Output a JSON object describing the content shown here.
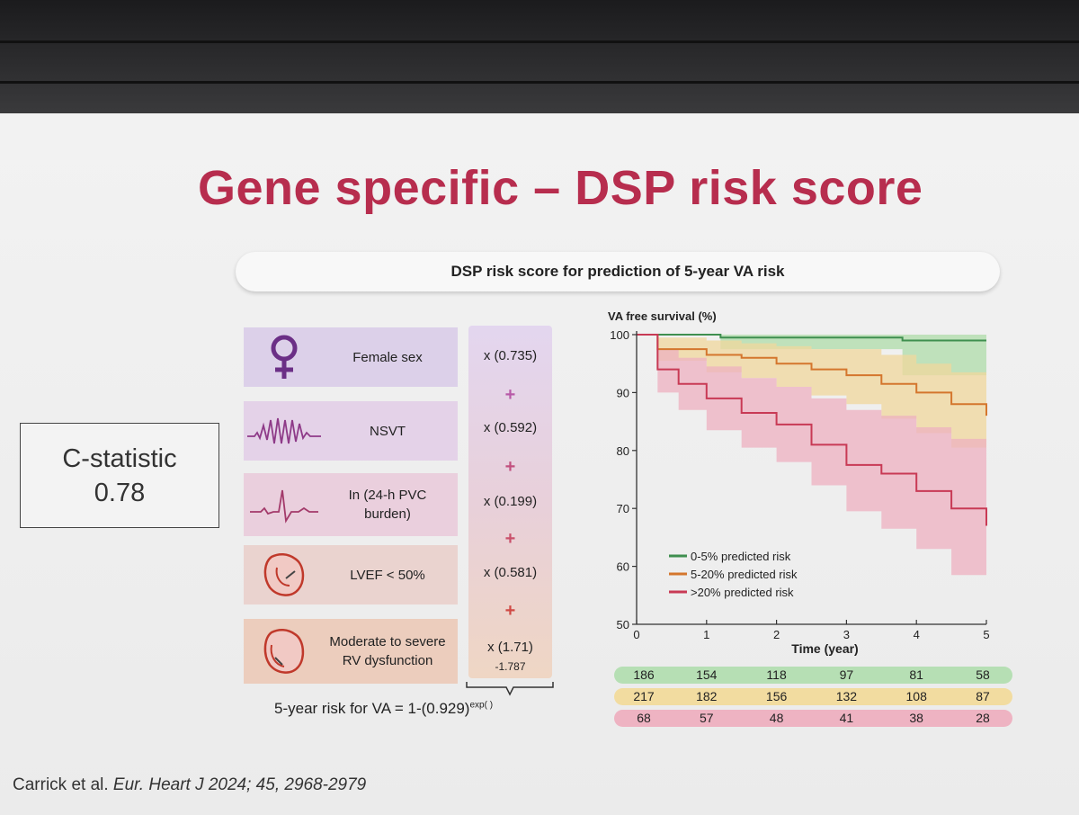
{
  "title": "Gene specific – DSP risk score",
  "subtitle": "DSP risk score for prediction of 5-year VA risk",
  "cstat": {
    "label": "C-statistic",
    "value": "0.78"
  },
  "factors": [
    {
      "icon": "female-sex-icon",
      "label": "Female sex",
      "coef": "x (0.735)"
    },
    {
      "icon": "nsvt-ecg-icon",
      "label": "NSVT",
      "coef": "x (0.592)"
    },
    {
      "icon": "pvc-ecg-icon",
      "label": "In (24-h PVC burden)",
      "coef": "x (0.199)"
    },
    {
      "icon": "heart-lv-icon",
      "label": "LVEF < 50%",
      "coef": "x (0.581)"
    },
    {
      "icon": "heart-rv-icon",
      "label": "Moderate to severe RV dysfunction",
      "coef": "x (1.71)"
    }
  ],
  "plus_sign": "+",
  "constant": "-1.787",
  "formula": {
    "main": "5-year risk for VA = 1-(0.929)",
    "sup": "exp( )"
  },
  "citation": {
    "authors": "Carrick et al.",
    "journal": "Eur. Heart J 2024; 45, 2968-2979"
  },
  "colors": {
    "title": "#b72d4e",
    "green": "#3f8f4f",
    "orange": "#d4762d",
    "red": "#c83a55"
  },
  "chart_data": {
    "type": "line",
    "title": "",
    "ylabel": "VA free survival (%)",
    "xlabel": "Time (year)",
    "xlim": [
      0,
      5
    ],
    "ylim": [
      50,
      100
    ],
    "x_ticks": [
      "0",
      "1",
      "2",
      "3",
      "4",
      "5"
    ],
    "y_ticks": [
      "50",
      "60",
      "70",
      "80",
      "90",
      "100"
    ],
    "legend_position": "bottom-left",
    "series": [
      {
        "name": "0-5% predicted risk",
        "color": "#3f8f4f",
        "x": [
          0,
          1.2,
          3.8,
          5
        ],
        "y": [
          100,
          99.5,
          99,
          99
        ],
        "lower": [
          100,
          97.5,
          93,
          93
        ],
        "upper": [
          100,
          100,
          100,
          100
        ]
      },
      {
        "name": "5-20% predicted risk",
        "color": "#d4762d",
        "x": [
          0,
          0.3,
          1.0,
          1.5,
          2.0,
          2.5,
          3.0,
          3.5,
          4.0,
          4.5,
          5.0
        ],
        "y": [
          100,
          97.5,
          96.5,
          96,
          95,
          94,
          93,
          91.5,
          90,
          88,
          86
        ],
        "lower": [
          100,
          95.5,
          93.5,
          92.5,
          91,
          89.5,
          88,
          85.5,
          83,
          80.5,
          78
        ],
        "upper": [
          100,
          99.5,
          99,
          98.5,
          98,
          97.5,
          97.5,
          96.5,
          95,
          93.5,
          92
        ]
      },
      {
        "name": ">20% predicted risk",
        "color": "#c83a55",
        "x": [
          0,
          0.3,
          0.6,
          1.0,
          1.5,
          2.0,
          2.5,
          3.0,
          3.5,
          4.0,
          4.5,
          5.0
        ],
        "y": [
          100,
          94,
          91.5,
          89,
          86.5,
          84.5,
          81,
          77.5,
          76,
          73,
          70,
          67
        ],
        "lower": [
          100,
          90,
          87,
          83.5,
          80.5,
          78,
          74,
          69.5,
          66.5,
          63,
          58.5,
          53.5
        ],
        "upper": [
          100,
          97.5,
          96,
          94.5,
          92.5,
          91,
          89,
          87,
          86,
          84,
          82,
          79
        ]
      }
    ],
    "at_risk": [
      {
        "series": "0-5% predicted risk",
        "values": [
          186,
          154,
          118,
          97,
          81,
          58
        ]
      },
      {
        "series": "5-20% predicted risk",
        "values": [
          217,
          182,
          156,
          132,
          108,
          87
        ]
      },
      {
        "series": ">20% predicted risk",
        "values": [
          68,
          57,
          48,
          41,
          38,
          28
        ]
      }
    ]
  }
}
